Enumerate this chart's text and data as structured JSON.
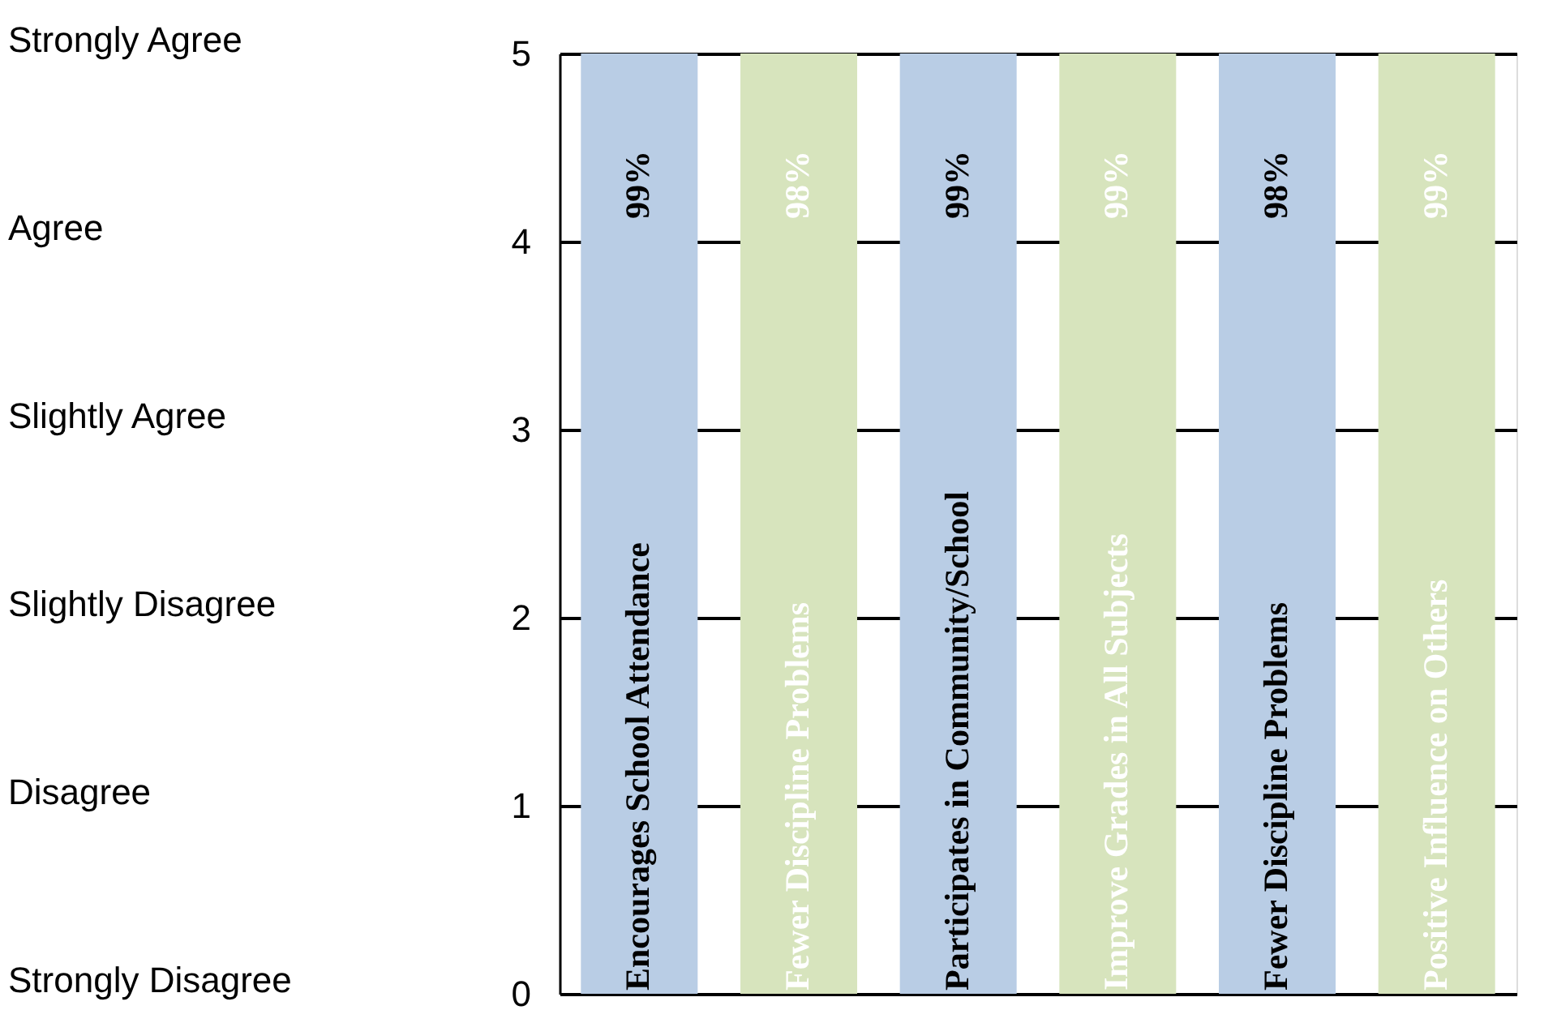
{
  "chart_data": {
    "type": "bar",
    "categories": [
      "Encourages School Attendance",
      "Fewer Discipline Problems",
      "Participates in Community/School",
      "Improve Grades in All Subjects",
      "Fewer Discipline Problems",
      "Positive Influence on Others"
    ],
    "values": [
      5,
      5,
      5,
      5,
      5,
      5
    ],
    "colors": [
      "#b9cde5",
      "#d7e4bd",
      "#b9cde5",
      "#d7e4bd",
      "#b9cde5",
      "#d7e4bd"
    ],
    "annotations": [
      "99%",
      "98%",
      "99%",
      "99%",
      "98%",
      "99%",
      "Strongly Agree",
      "Agree",
      "Slightly Agree",
      "Slightly Disagree",
      "Disagree",
      "Strongly Disagree"
    ],
    "ylim": [
      0,
      5
    ],
    "yticks": [
      0,
      1,
      2,
      3,
      4,
      5
    ],
    "grid": "y",
    "legend": false,
    "tick_labels": "y"
  }
}
